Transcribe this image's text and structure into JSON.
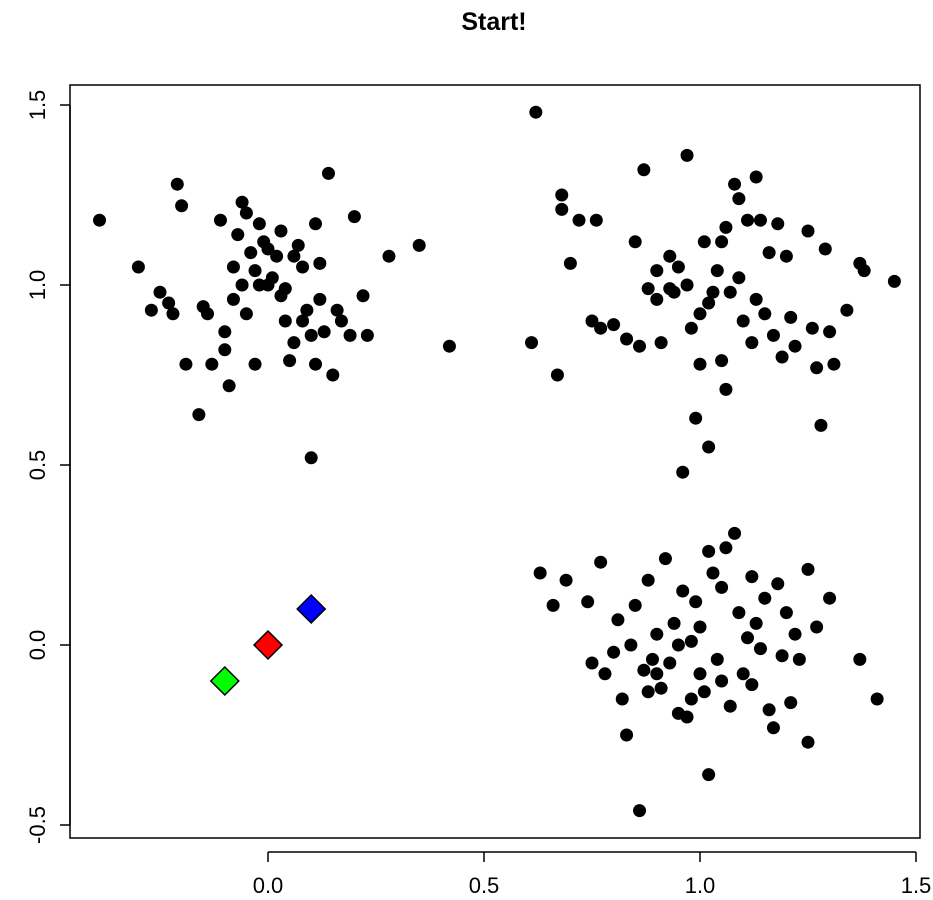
{
  "chart_data": {
    "type": "scatter",
    "title": "Start!",
    "xlabel": "",
    "ylabel": "",
    "xlim": [
      -0.45,
      1.5
    ],
    "ylim": [
      -0.5,
      1.5
    ],
    "x_ticks": [
      0.0,
      0.5,
      1.0,
      1.5
    ],
    "x_tick_labels": [
      "0.0",
      "0.5",
      "1.0",
      "1.5"
    ],
    "y_ticks": [
      -0.5,
      0.0,
      0.5,
      1.0,
      1.5
    ],
    "y_tick_labels": [
      "-0.5",
      "0.0",
      "0.5",
      "1.0",
      "1.5"
    ],
    "grid": false,
    "series": [
      {
        "marker": "circle",
        "color": "#000000",
        "points": [
          [
            -0.39,
            1.18
          ],
          [
            -0.3,
            1.05
          ],
          [
            -0.27,
            0.93
          ],
          [
            -0.25,
            0.98
          ],
          [
            -0.23,
            0.95
          ],
          [
            -0.22,
            0.92
          ],
          [
            -0.21,
            1.28
          ],
          [
            -0.2,
            1.22
          ],
          [
            -0.19,
            0.78
          ],
          [
            -0.16,
            0.64
          ],
          [
            -0.15,
            0.94
          ],
          [
            -0.14,
            0.92
          ],
          [
            -0.13,
            0.78
          ],
          [
            -0.11,
            1.18
          ],
          [
            -0.1,
            0.87
          ],
          [
            -0.1,
            0.82
          ],
          [
            -0.09,
            0.72
          ],
          [
            -0.08,
            1.05
          ],
          [
            -0.07,
            1.14
          ],
          [
            -0.06,
            1.23
          ],
          [
            -0.05,
            1.2
          ],
          [
            -0.04,
            1.09
          ],
          [
            -0.03,
            0.78
          ],
          [
            -0.02,
            1.17
          ],
          [
            -0.01,
            1.12
          ],
          [
            0.0,
            1.0
          ],
          [
            0.01,
            1.02
          ],
          [
            0.02,
            1.08
          ],
          [
            0.03,
            0.97
          ],
          [
            0.04,
            0.9
          ],
          [
            0.05,
            0.79
          ],
          [
            0.06,
            0.84
          ],
          [
            0.07,
            1.11
          ],
          [
            0.08,
            1.05
          ],
          [
            0.09,
            0.93
          ],
          [
            0.1,
            0.86
          ],
          [
            0.11,
            1.17
          ],
          [
            0.12,
            0.96
          ],
          [
            0.13,
            0.87
          ],
          [
            0.14,
            1.31
          ],
          [
            0.15,
            0.75
          ],
          [
            0.17,
            0.9
          ],
          [
            0.19,
            0.86
          ],
          [
            0.2,
            1.19
          ],
          [
            0.22,
            0.97
          ],
          [
            0.23,
            0.86
          ],
          [
            0.28,
            1.08
          ],
          [
            0.35,
            1.11
          ],
          [
            0.42,
            0.83
          ],
          [
            0.1,
            0.52
          ],
          [
            -0.02,
            1.0
          ],
          [
            0.03,
            1.15
          ],
          [
            -0.06,
            1.0
          ],
          [
            0.0,
            1.1
          ],
          [
            0.06,
            1.08
          ],
          [
            -0.03,
            1.04
          ],
          [
            0.11,
            0.78
          ],
          [
            0.08,
            0.9
          ],
          [
            0.16,
            0.93
          ],
          [
            0.12,
            1.06
          ],
          [
            -0.08,
            0.96
          ],
          [
            0.04,
            0.99
          ],
          [
            -0.05,
            0.92
          ],
          [
            0.61,
            0.84
          ],
          [
            0.62,
            1.48
          ],
          [
            0.67,
            0.75
          ],
          [
            0.68,
            1.25
          ],
          [
            0.68,
            1.21
          ],
          [
            0.7,
            1.06
          ],
          [
            0.72,
            1.18
          ],
          [
            0.75,
            0.9
          ],
          [
            0.76,
            1.18
          ],
          [
            0.77,
            0.88
          ],
          [
            0.8,
            0.89
          ],
          [
            0.83,
            0.85
          ],
          [
            0.85,
            1.12
          ],
          [
            0.86,
            0.83
          ],
          [
            0.87,
            1.32
          ],
          [
            0.88,
            0.99
          ],
          [
            0.9,
            0.96
          ],
          [
            0.91,
            0.84
          ],
          [
            0.93,
            0.99
          ],
          [
            0.94,
            0.98
          ],
          [
            0.95,
            1.05
          ],
          [
            0.96,
            0.48
          ],
          [
            0.97,
            1.36
          ],
          [
            0.98,
            0.88
          ],
          [
            0.99,
            0.63
          ],
          [
            1.0,
            0.92
          ],
          [
            1.01,
            1.12
          ],
          [
            1.02,
            0.55
          ],
          [
            1.03,
            0.98
          ],
          [
            1.04,
            1.04
          ],
          [
            1.05,
            0.79
          ],
          [
            1.06,
            1.16
          ],
          [
            1.07,
            0.98
          ],
          [
            1.08,
            1.28
          ],
          [
            1.09,
            1.24
          ],
          [
            1.1,
            0.9
          ],
          [
            1.11,
            1.18
          ],
          [
            1.12,
            0.84
          ],
          [
            1.13,
            1.3
          ],
          [
            1.14,
            1.18
          ],
          [
            1.15,
            0.92
          ],
          [
            1.16,
            1.09
          ],
          [
            1.17,
            0.86
          ],
          [
            1.18,
            1.17
          ],
          [
            1.19,
            0.8
          ],
          [
            1.2,
            1.08
          ],
          [
            1.21,
            0.91
          ],
          [
            1.22,
            0.83
          ],
          [
            1.25,
            1.15
          ],
          [
            1.26,
            0.88
          ],
          [
            1.27,
            0.77
          ],
          [
            1.28,
            0.61
          ],
          [
            1.29,
            1.1
          ],
          [
            1.3,
            0.87
          ],
          [
            1.31,
            0.78
          ],
          [
            1.34,
            0.93
          ],
          [
            1.37,
            1.06
          ],
          [
            1.38,
            1.04
          ],
          [
            1.45,
            1.01
          ],
          [
            0.97,
            1.0
          ],
          [
            1.05,
            1.12
          ],
          [
            0.93,
            1.08
          ],
          [
            1.02,
            0.95
          ],
          [
            1.09,
            1.02
          ],
          [
            1.0,
            0.78
          ],
          [
            1.06,
            0.71
          ],
          [
            1.13,
            0.96
          ],
          [
            0.9,
            1.04
          ],
          [
            0.63,
            0.2
          ],
          [
            0.66,
            0.11
          ],
          [
            0.69,
            0.18
          ],
          [
            0.74,
            0.12
          ],
          [
            0.75,
            -0.05
          ],
          [
            0.77,
            0.23
          ],
          [
            0.78,
            -0.08
          ],
          [
            0.8,
            -0.02
          ],
          [
            0.81,
            0.07
          ],
          [
            0.82,
            -0.15
          ],
          [
            0.83,
            -0.25
          ],
          [
            0.84,
            0.0
          ],
          [
            0.85,
            0.11
          ],
          [
            0.86,
            -0.46
          ],
          [
            0.87,
            -0.07
          ],
          [
            0.88,
            0.18
          ],
          [
            0.89,
            -0.04
          ],
          [
            0.9,
            0.03
          ],
          [
            0.91,
            -0.12
          ],
          [
            0.92,
            0.24
          ],
          [
            0.93,
            -0.05
          ],
          [
            0.94,
            0.06
          ],
          [
            0.95,
            -0.19
          ],
          [
            0.96,
            0.15
          ],
          [
            0.97,
            -0.2
          ],
          [
            0.98,
            0.01
          ],
          [
            0.99,
            0.12
          ],
          [
            1.0,
            -0.08
          ],
          [
            1.01,
            -0.13
          ],
          [
            1.02,
            0.26
          ],
          [
            1.03,
            0.2
          ],
          [
            1.04,
            -0.04
          ],
          [
            1.05,
            0.16
          ],
          [
            1.06,
            0.27
          ],
          [
            1.07,
            -0.17
          ],
          [
            1.08,
            0.31
          ],
          [
            1.09,
            0.09
          ],
          [
            1.1,
            -0.08
          ],
          [
            1.11,
            0.02
          ],
          [
            1.12,
            -0.11
          ],
          [
            1.13,
            0.06
          ],
          [
            1.14,
            -0.01
          ],
          [
            1.15,
            0.13
          ],
          [
            1.16,
            -0.18
          ],
          [
            1.17,
            -0.23
          ],
          [
            1.18,
            0.17
          ],
          [
            1.19,
            -0.03
          ],
          [
            1.2,
            0.09
          ],
          [
            1.21,
            -0.16
          ],
          [
            1.22,
            0.03
          ],
          [
            1.23,
            -0.04
          ],
          [
            1.25,
            0.21
          ],
          [
            1.25,
            -0.27
          ],
          [
            1.27,
            0.05
          ],
          [
            1.3,
            0.13
          ],
          [
            1.37,
            -0.04
          ],
          [
            1.41,
            -0.15
          ],
          [
            1.02,
            -0.36
          ],
          [
            0.9,
            -0.08
          ],
          [
            0.95,
            0.0
          ],
          [
            1.0,
            0.05
          ],
          [
            1.05,
            -0.1
          ],
          [
            0.98,
            -0.15
          ],
          [
            1.12,
            0.19
          ],
          [
            0.88,
            -0.13
          ]
        ]
      },
      {
        "marker": "diamond",
        "color": "#00ff00",
        "points": [
          [
            -0.1,
            -0.1
          ]
        ]
      },
      {
        "marker": "diamond",
        "color": "#ff0000",
        "points": [
          [
            0.0,
            0.0
          ]
        ]
      },
      {
        "marker": "diamond",
        "color": "#0000ff",
        "points": [
          [
            0.1,
            0.1
          ]
        ]
      }
    ]
  }
}
